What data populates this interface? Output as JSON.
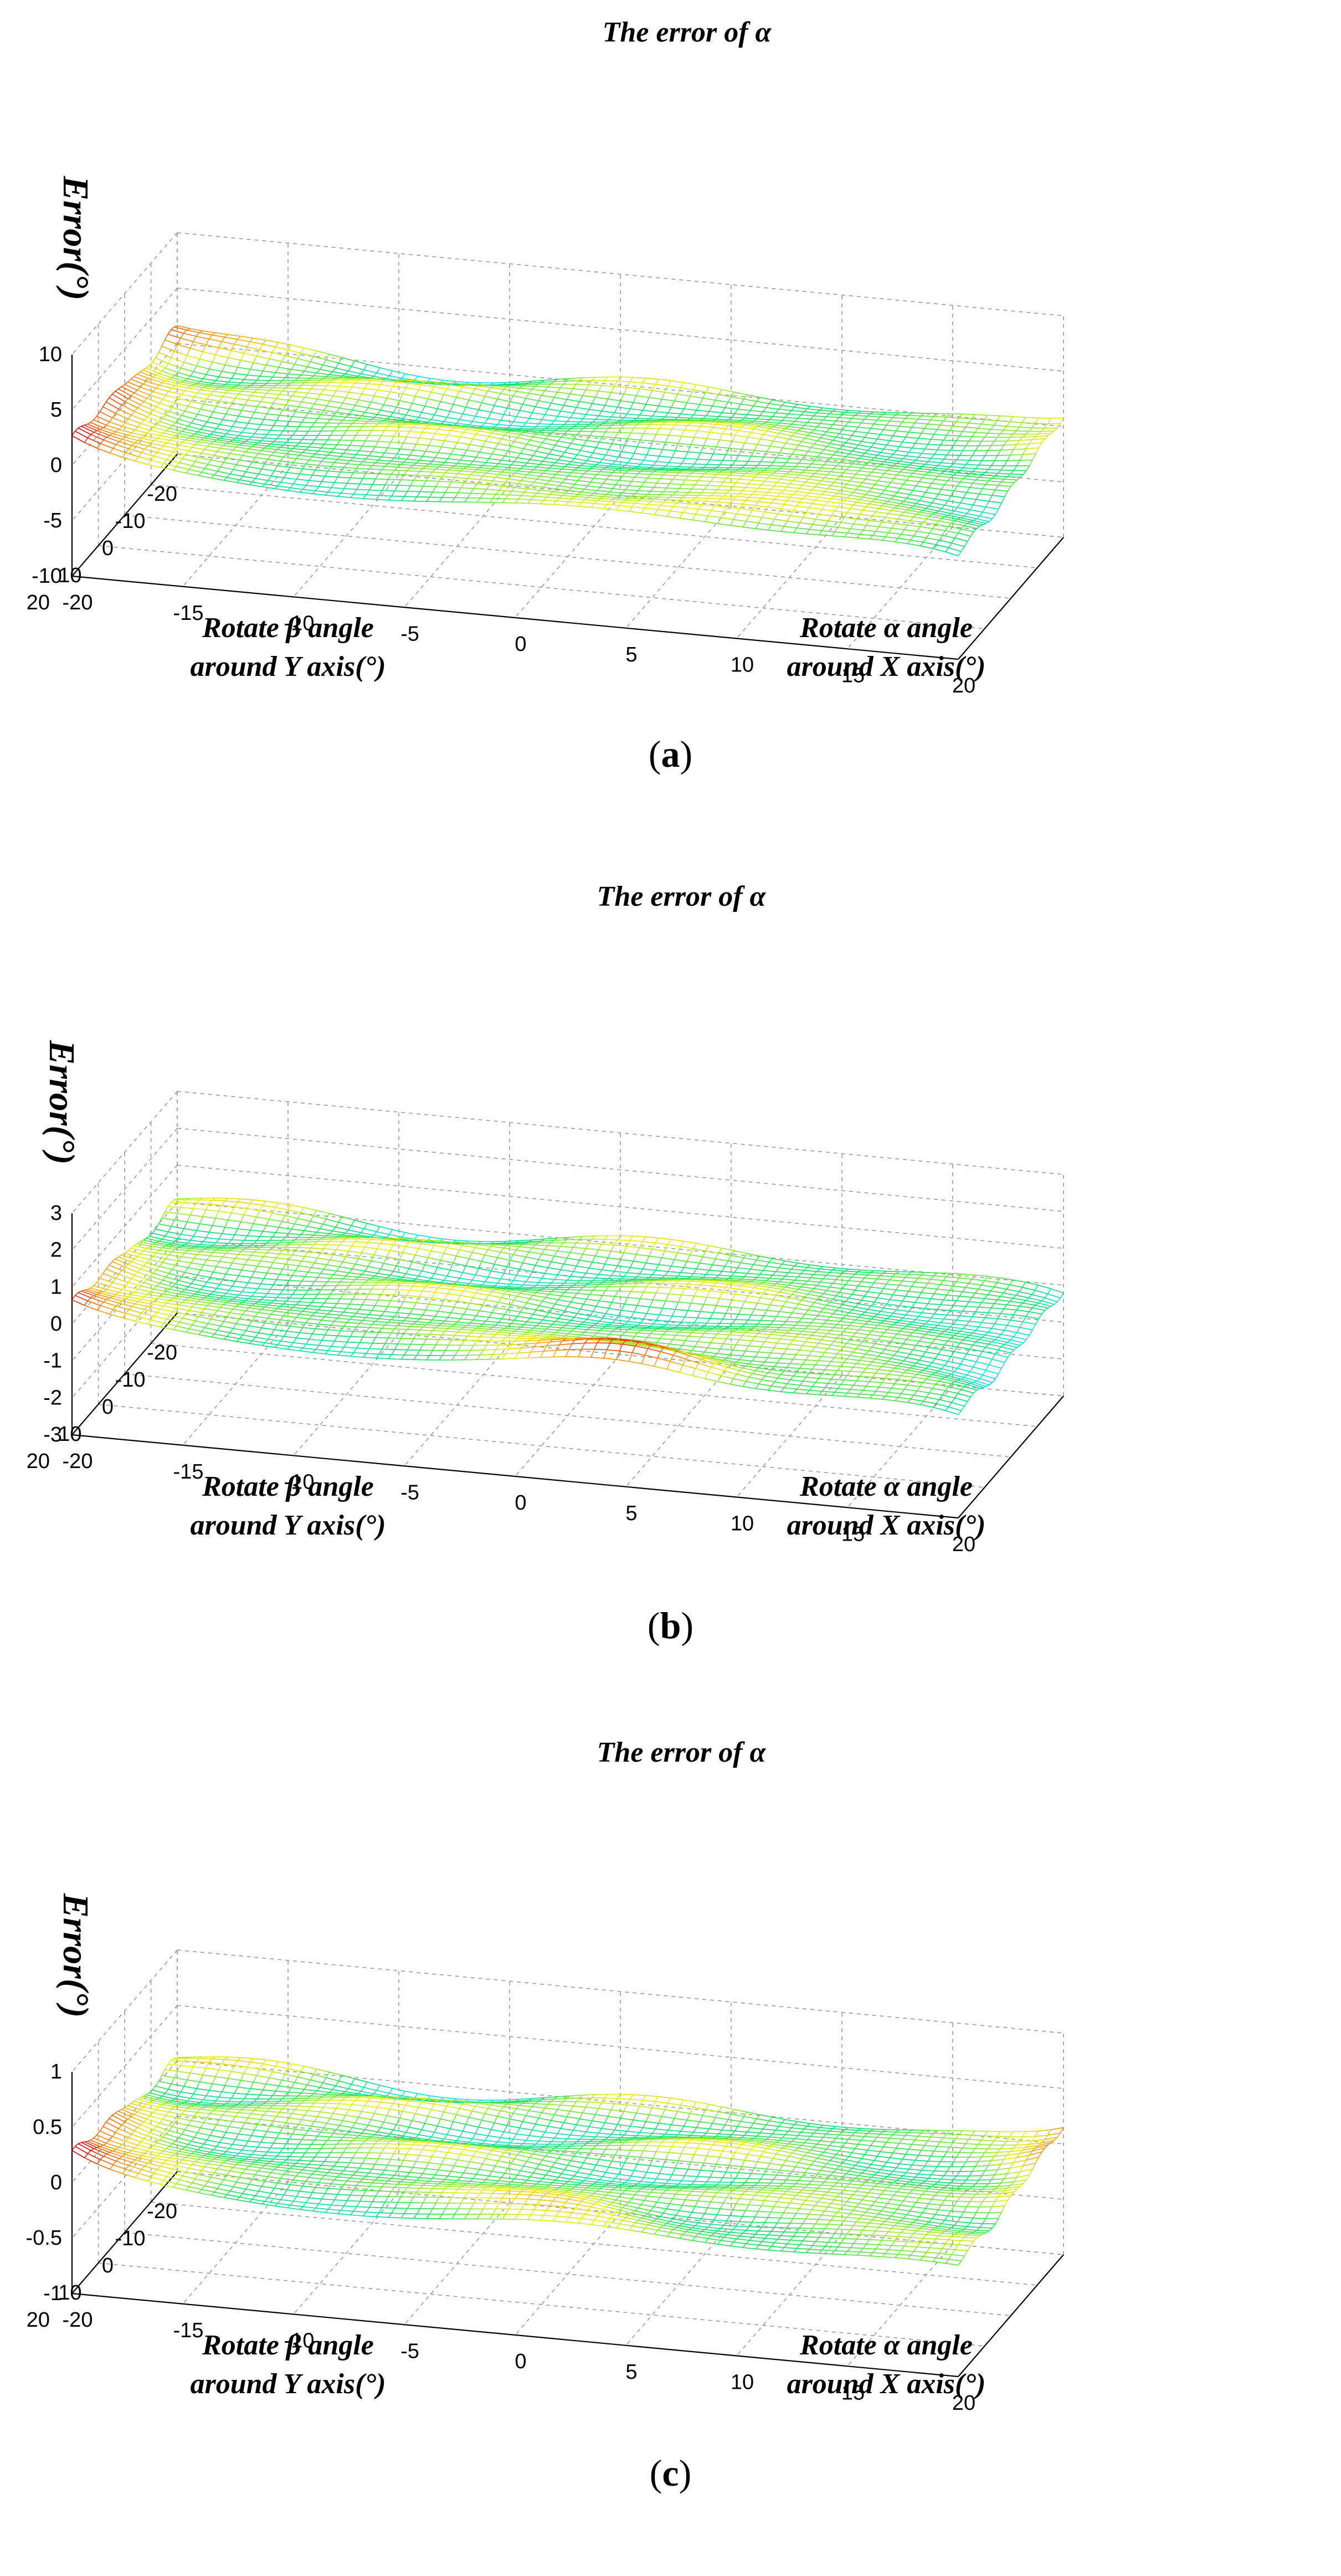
{
  "chart_data": [
    {
      "type": "surface",
      "panel_label": "a",
      "title": "The error of α",
      "zlabel": "Error(°)",
      "ylabel_line1": "Rotate β angle",
      "ylabel_line2": "around Y axis(°)",
      "xlabel_line1": "Rotate α angle",
      "xlabel_line2": "around X axis(°)",
      "xlim": [
        -20,
        20
      ],
      "ylim": [
        -20,
        20
      ],
      "zlim": [
        -10,
        10
      ],
      "x_ticks": [
        "-20",
        "-15",
        "-10",
        "-5",
        "0",
        "5",
        "10",
        "15",
        "20"
      ],
      "y_ticks": [
        "20",
        "10",
        "0",
        "-10",
        "-20"
      ],
      "z_ticks": [
        "10",
        "5",
        "0",
        "-5",
        "-10"
      ],
      "z_peak": 8,
      "colormap": [
        "#0060ff",
        "#00e0ff",
        "#00e060",
        "#e8f000",
        "#ff8000",
        "#e00000"
      ],
      "grid": true
    },
    {
      "type": "surface",
      "panel_label": "b",
      "title": "The error of α",
      "zlabel": "Error(°)",
      "ylabel_line1": "Rotate β angle",
      "ylabel_line2": "around Y axis(°)",
      "xlabel_line1": "Rotate α angle",
      "xlabel_line2": "around X axis(°)",
      "xlim": [
        -20,
        20
      ],
      "ylim": [
        -20,
        20
      ],
      "zlim": [
        -3,
        3
      ],
      "x_ticks": [
        "-20",
        "-15",
        "-10",
        "-5",
        "0",
        "5",
        "10",
        "15",
        "20"
      ],
      "y_ticks": [
        "20",
        "10",
        "0",
        "-10",
        "-20"
      ],
      "z_ticks": [
        "3",
        "2",
        "1",
        "0",
        "-1",
        "-2",
        "-3"
      ],
      "z_peak": 2.5,
      "colormap": [
        "#0060ff",
        "#00e0ff",
        "#00e060",
        "#e8f000",
        "#ff8000",
        "#e00000"
      ],
      "grid": true
    },
    {
      "type": "surface",
      "panel_label": "c",
      "title": "The error of α",
      "zlabel": "Error(°)",
      "ylabel_line1": "Rotate β angle",
      "ylabel_line2": "around Y axis(°)",
      "xlabel_line1": "Rotate α angle",
      "xlabel_line2": "around X axis(°)",
      "xlim": [
        -20,
        20
      ],
      "ylim": [
        -20,
        20
      ],
      "zlim": [
        -1,
        1
      ],
      "x_ticks": [
        "-20",
        "-15",
        "-10",
        "-5",
        "0",
        "5",
        "10",
        "15",
        "20"
      ],
      "y_ticks": [
        "20",
        "10",
        "0",
        "-10",
        "-20"
      ],
      "z_ticks": [
        "1",
        "0.5",
        "0",
        "-0.5",
        "-1"
      ],
      "z_peak": 0.9,
      "colormap": [
        "#0060ff",
        "#00e0ff",
        "#00e060",
        "#e8f000",
        "#ff8000",
        "#e00000"
      ],
      "grid": true
    }
  ]
}
